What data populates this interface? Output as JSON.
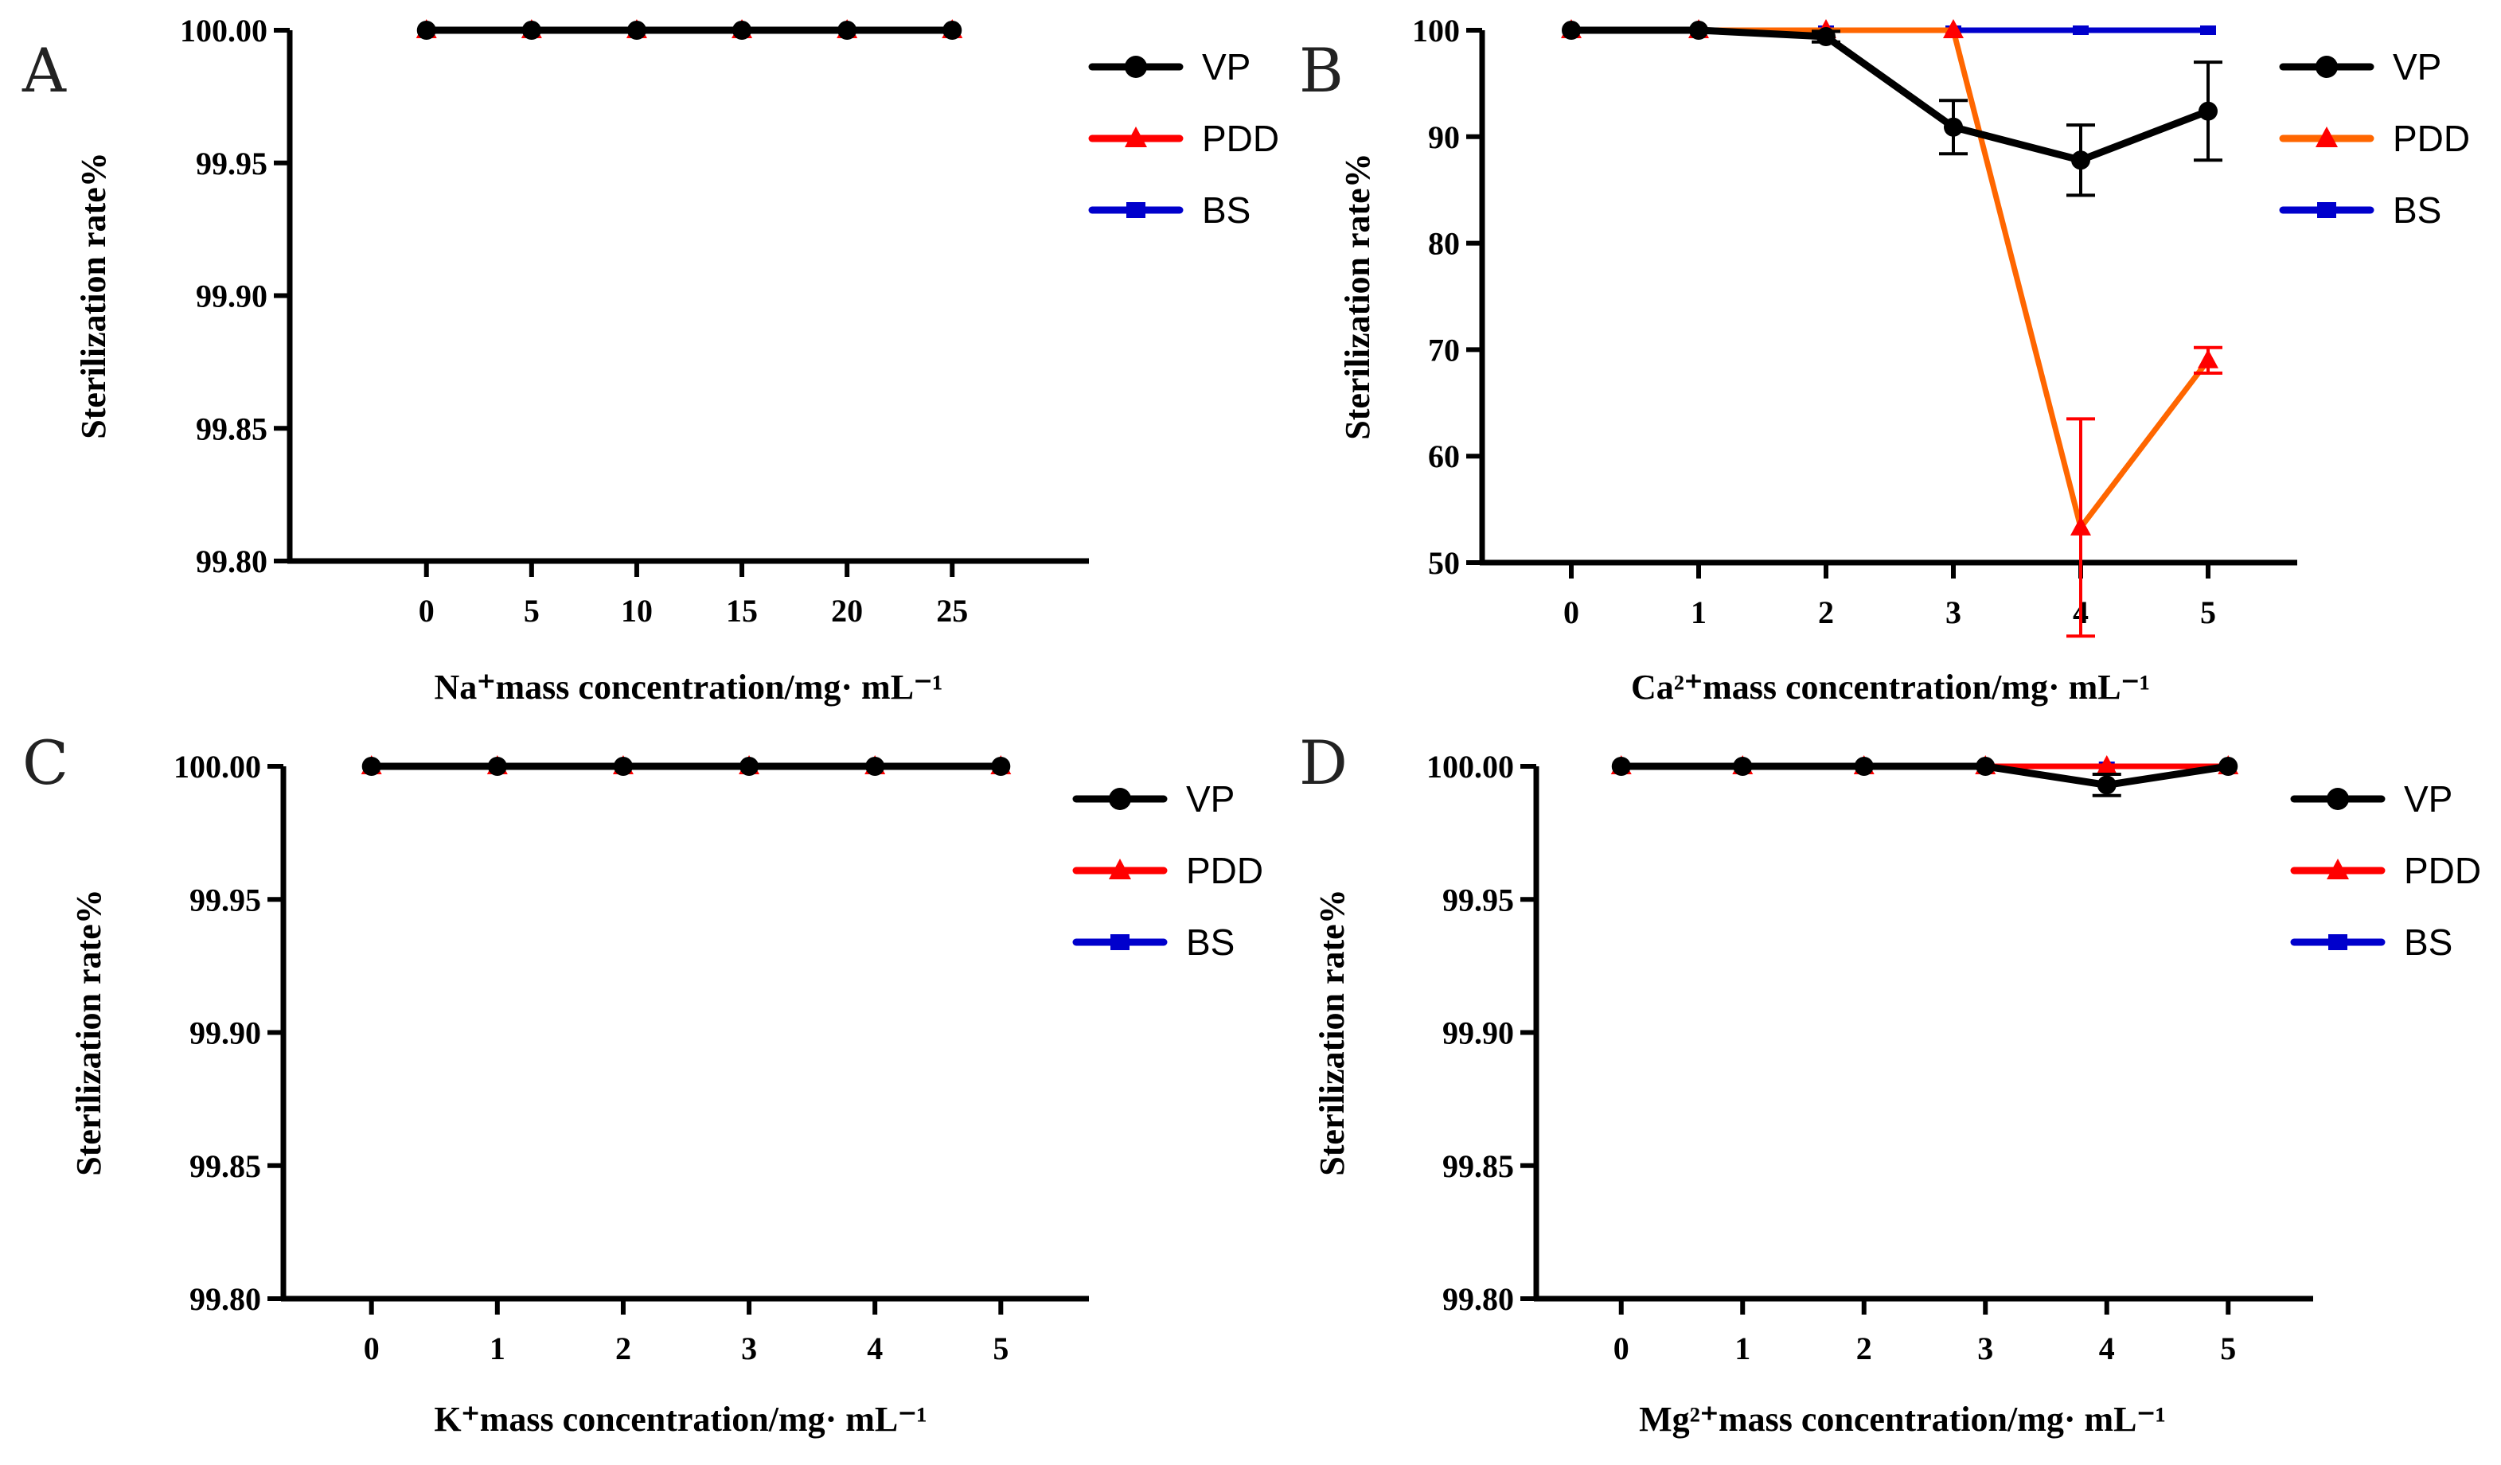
{
  "chart_data": [
    {
      "panel": "A",
      "type": "line",
      "ylabel": "Sterilization rate%",
      "xlabel": "Na⁺mass concentration/mg· mL⁻¹",
      "x": [
        0,
        5,
        10,
        15,
        20,
        25
      ],
      "xlim": [
        -6.5,
        31.5
      ],
      "ylim": [
        99.8,
        100.0
      ],
      "yticks": [
        99.8,
        99.85,
        99.9,
        99.95,
        100.0
      ],
      "ytick_labels": [
        "99.80",
        "99.85",
        "99.90",
        "99.95",
        "100.00"
      ],
      "legend": "right",
      "series": [
        {
          "name": "VP",
          "color": "#000000",
          "marker": "circle",
          "values": [
            100,
            100,
            100,
            100,
            100,
            100
          ],
          "err": [
            0,
            0,
            0,
            0,
            0,
            0
          ]
        },
        {
          "name": "PDD",
          "color": "#ff0000",
          "marker": "triangle",
          "values": [
            100,
            100,
            100,
            100,
            100,
            100
          ],
          "err": [
            0,
            0,
            0,
            0,
            0,
            0
          ]
        },
        {
          "name": "BS",
          "color": "#0000cc",
          "marker": "square",
          "values": [
            100,
            100,
            100,
            100,
            100,
            100
          ],
          "err": [
            0,
            0,
            0,
            0,
            0,
            0
          ]
        }
      ]
    },
    {
      "panel": "B",
      "type": "line",
      "ylabel": "Sterilization rate%",
      "xlabel": "Ca²⁺mass concentration/mg· mL⁻¹",
      "x": [
        0,
        1,
        2,
        3,
        4,
        5
      ],
      "xlim": [
        -0.7,
        5.7
      ],
      "ylim": [
        50,
        100
      ],
      "yticks": [
        50,
        60,
        70,
        80,
        90,
        100
      ],
      "ytick_labels": [
        "50",
        "60",
        "70",
        "80",
        "90",
        "100"
      ],
      "legend": "right",
      "series": [
        {
          "name": "VP",
          "color": "#000000",
          "marker": "circle",
          "values": [
            100,
            100,
            99.4,
            90.9,
            87.8,
            92.4
          ],
          "err": [
            0,
            0,
            0.5,
            2.5,
            3.3,
            4.6
          ]
        },
        {
          "name": "PDD",
          "color": "#ff6600",
          "marker": "triangle",
          "values": [
            100,
            100,
            100,
            100,
            53.3,
            69.0
          ],
          "err": [
            0,
            0,
            0,
            0,
            10.2,
            1.2
          ]
        },
        {
          "name": "BS",
          "color": "#0000cc",
          "marker": "square",
          "values": [
            100,
            100,
            100,
            100,
            100,
            100
          ],
          "err": [
            0,
            0,
            0,
            0,
            0,
            0
          ]
        }
      ]
    },
    {
      "panel": "C",
      "type": "line",
      "ylabel": "Sterilization rate%",
      "xlabel": "K⁺mass concentration/mg· mL⁻¹",
      "x": [
        0,
        1,
        2,
        3,
        4,
        5
      ],
      "xlim": [
        -0.7,
        5.7
      ],
      "ylim": [
        99.8,
        100.0
      ],
      "yticks": [
        99.8,
        99.85,
        99.9,
        99.95,
        100.0
      ],
      "ytick_labels": [
        "99.80",
        "99.85",
        "99.90",
        "99.95",
        "100.00"
      ],
      "legend": "right",
      "series": [
        {
          "name": "VP",
          "color": "#000000",
          "marker": "circle",
          "values": [
            100,
            100,
            100,
            100,
            100,
            100
          ],
          "err": [
            0,
            0,
            0,
            0,
            0,
            0
          ]
        },
        {
          "name": "PDD",
          "color": "#ff0000",
          "marker": "triangle",
          "values": [
            100,
            100,
            100,
            100,
            100,
            100
          ],
          "err": [
            0,
            0,
            0,
            0,
            0,
            0
          ]
        },
        {
          "name": "BS",
          "color": "#0000cc",
          "marker": "square",
          "values": [
            100,
            100,
            100,
            100,
            100,
            100
          ],
          "err": [
            0,
            0,
            0,
            0,
            0,
            0
          ]
        }
      ]
    },
    {
      "panel": "D",
      "type": "line",
      "ylabel": "Sterilization rate%",
      "xlabel": "Mg²⁺mass concentration/mg· mL⁻¹",
      "x": [
        0,
        1,
        2,
        3,
        4,
        5
      ],
      "xlim": [
        -0.7,
        5.7
      ],
      "ylim": [
        99.8,
        100.0
      ],
      "yticks": [
        99.8,
        99.85,
        99.9,
        99.95,
        100.0
      ],
      "ytick_labels": [
        "99.80",
        "99.85",
        "99.90",
        "99.95",
        "100.00"
      ],
      "legend": "right",
      "series": [
        {
          "name": "VP",
          "color": "#000000",
          "marker": "circle",
          "values": [
            100,
            100,
            100,
            100,
            99.993,
            100
          ],
          "err": [
            0,
            0,
            0,
            0,
            0.004,
            0
          ]
        },
        {
          "name": "PDD",
          "color": "#ff0000",
          "marker": "triangle",
          "values": [
            100,
            100,
            100,
            100,
            100,
            100
          ],
          "err": [
            0,
            0,
            0,
            0,
            0,
            0
          ]
        },
        {
          "name": "BS",
          "color": "#0000cc",
          "marker": "square",
          "values": [
            100,
            100,
            100,
            100,
            100,
            100
          ],
          "err": [
            0,
            0,
            0,
            0,
            0,
            0
          ]
        }
      ]
    }
  ]
}
